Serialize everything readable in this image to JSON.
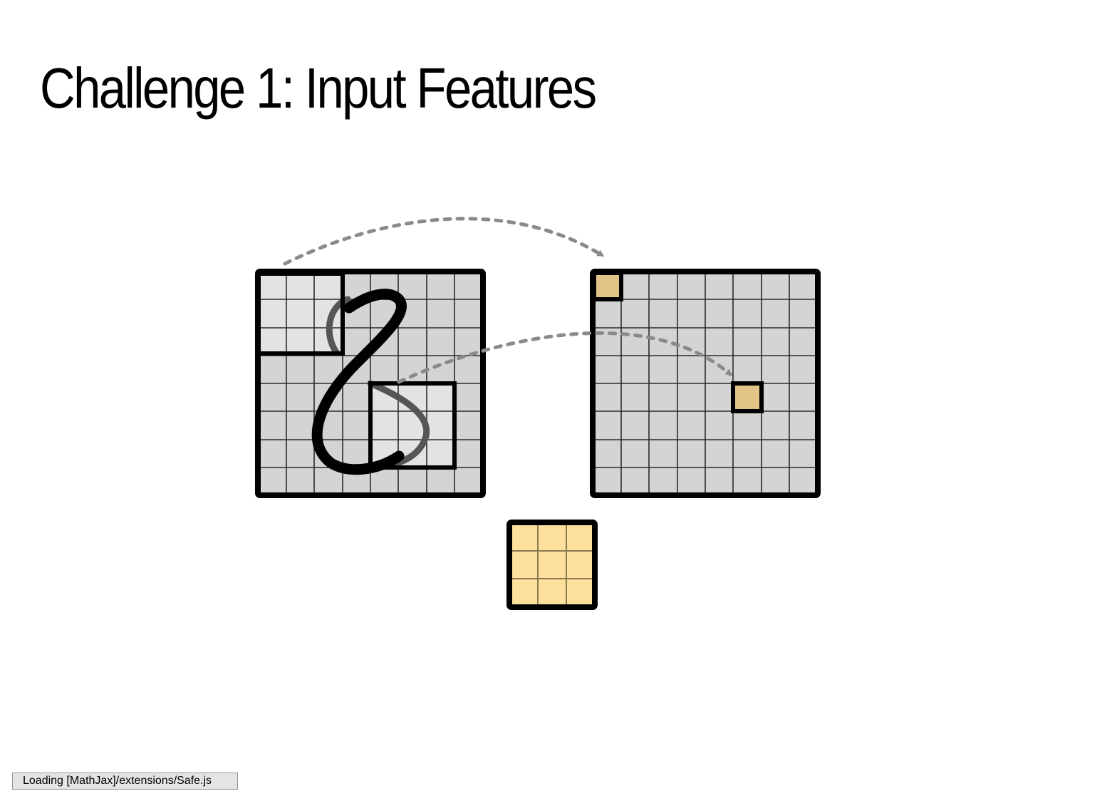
{
  "slide": {
    "title": "Challenge 1: Input Features"
  },
  "diagram": {
    "input_grid": {
      "rows": 8,
      "cols": 8,
      "symbol": "8"
    },
    "output_grid": {
      "rows": 8,
      "cols": 8
    },
    "kernel": {
      "rows": 3,
      "cols": 3
    },
    "colors": {
      "cell_fill": "#d4d4d4",
      "receptive_field_fill": "#e3e3e3",
      "output_highlight": "#e3c488",
      "kernel_fill": "#fde09c",
      "arrow": "#8a8a8a"
    }
  },
  "status": {
    "text": "Loading [MathJax]/extensions/Safe.js"
  }
}
